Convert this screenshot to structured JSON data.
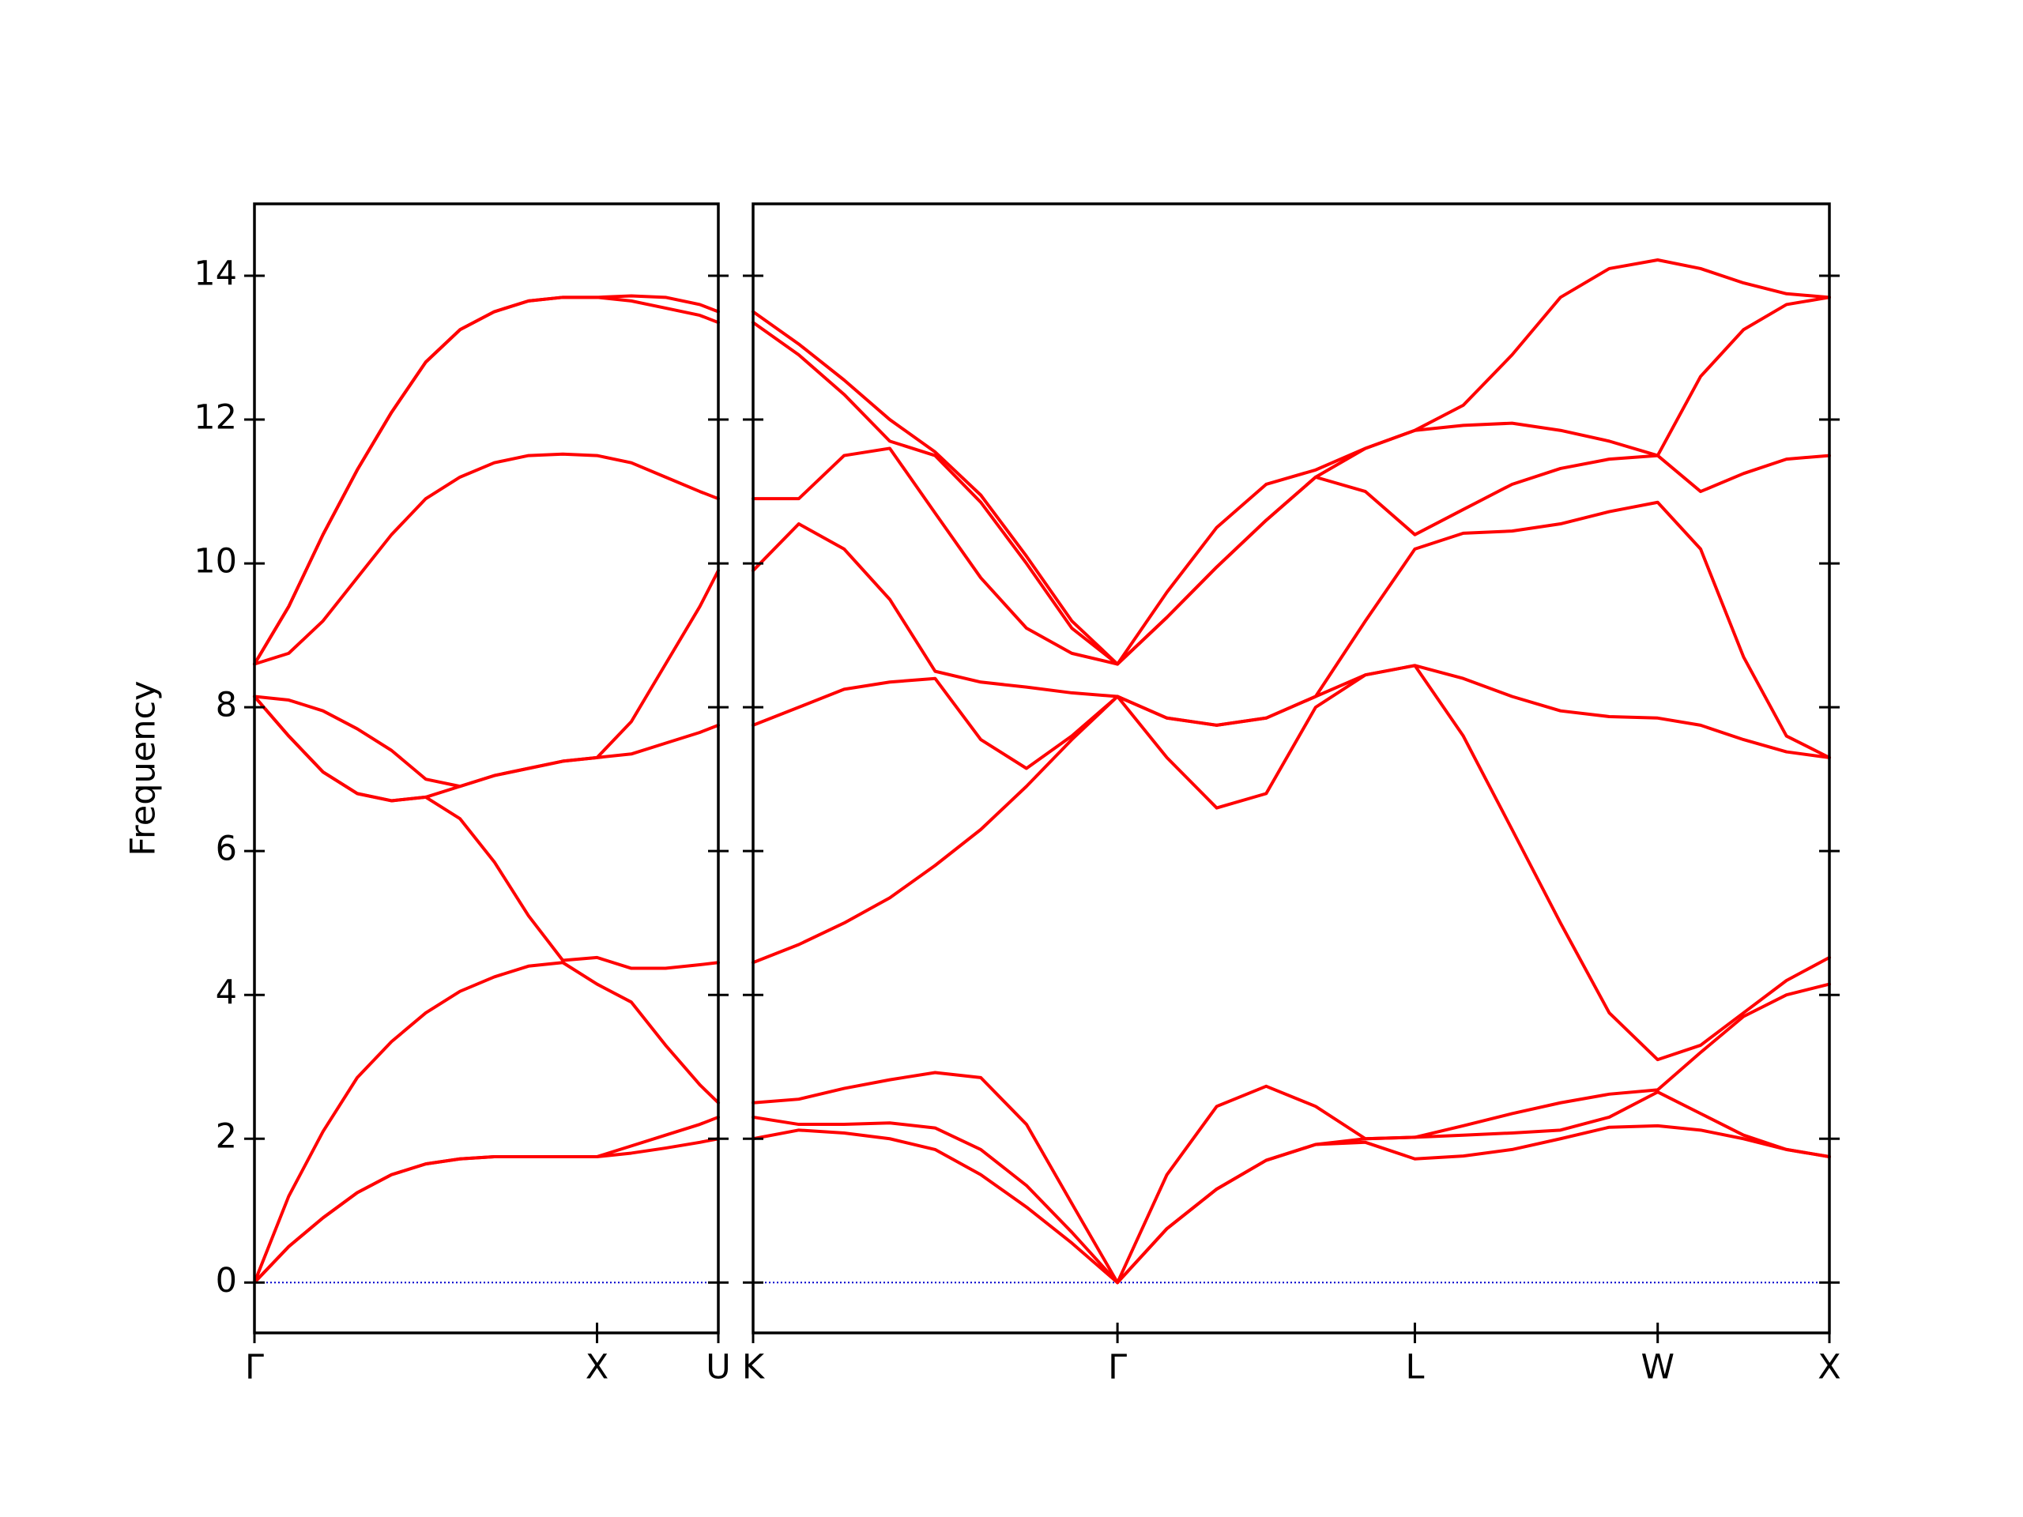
{
  "chart_data": [
    {
      "type": "line",
      "ylabel": "Frequency",
      "color": "#ff0000",
      "ytick_labels": true,
      "hline": {
        "y": 0,
        "color": "#0000cc"
      },
      "xlim": [
        0,
        1.354
      ],
      "ylim": [
        -0.7,
        15
      ],
      "xticks": [
        {
          "value": 0,
          "label": "Γ"
        },
        {
          "value": 1,
          "label": "X"
        },
        {
          "value": 1.354,
          "label": "U"
        }
      ],
      "yticks": [
        0,
        2,
        4,
        6,
        8,
        10,
        12,
        14
      ],
      "x": [
        0,
        0.1,
        0.2,
        0.3,
        0.4,
        0.5,
        0.6,
        0.7,
        0.8,
        0.9,
        1.0,
        1.1,
        1.2,
        1.3,
        1.354
      ],
      "series": [
        {
          "values": [
            0,
            0.5,
            0.9,
            1.25,
            1.5,
            1.65,
            1.72,
            1.75,
            1.75,
            1.75,
            1.75,
            1.8,
            1.87,
            1.95,
            2.0
          ]
        },
        {
          "values": [
            0,
            0.5,
            0.9,
            1.25,
            1.5,
            1.65,
            1.72,
            1.75,
            1.75,
            1.75,
            1.75,
            1.9,
            2.05,
            2.2,
            2.3
          ]
        },
        {
          "values": [
            0,
            1.2,
            2.1,
            2.85,
            3.35,
            3.75,
            4.05,
            4.25,
            4.4,
            4.45,
            4.15,
            3.9,
            3.3,
            2.75,
            2.5
          ]
        },
        {
          "values": [
            8.15,
            7.6,
            7.1,
            6.8,
            6.7,
            6.75,
            6.45,
            5.85,
            5.1,
            4.48,
            4.52,
            4.37,
            4.37,
            4.42,
            4.45
          ]
        },
        {
          "values": [
            8.15,
            7.6,
            7.1,
            6.8,
            6.7,
            6.75,
            6.9,
            7.05,
            7.15,
            7.25,
            7.3,
            7.35,
            7.5,
            7.65,
            7.75
          ]
        },
        {
          "values": [
            8.15,
            8.1,
            7.95,
            7.7,
            7.4,
            7.0,
            6.9,
            7.05,
            7.15,
            7.25,
            7.3,
            7.8,
            8.6,
            9.4,
            9.9
          ]
        },
        {
          "values": [
            8.6,
            8.75,
            9.2,
            9.8,
            10.4,
            10.9,
            11.2,
            11.4,
            11.5,
            11.52,
            11.5,
            11.4,
            11.2,
            11.0,
            10.9
          ]
        },
        {
          "values": [
            8.6,
            9.4,
            10.4,
            11.3,
            12.1,
            12.8,
            13.25,
            13.5,
            13.65,
            13.7,
            13.7,
            13.65,
            13.55,
            13.45,
            13.35
          ]
        },
        {
          "values": [
            8.6,
            9.4,
            10.4,
            11.3,
            12.1,
            12.8,
            13.25,
            13.5,
            13.65,
            13.7,
            13.7,
            13.72,
            13.7,
            13.6,
            13.5
          ]
        }
      ]
    },
    {
      "type": "line",
      "color": "#ff0000",
      "ytick_labels": false,
      "hline": {
        "y": 0,
        "color": "#0000cc"
      },
      "xlim": [
        1.354,
        4.488
      ],
      "ylim": [
        -0.7,
        15
      ],
      "xticks": [
        {
          "value": 1.354,
          "label": "K"
        },
        {
          "value": 2.415,
          "label": "Γ"
        },
        {
          "value": 3.281,
          "label": "L"
        },
        {
          "value": 3.988,
          "label": "W"
        },
        {
          "value": 4.488,
          "label": "X"
        }
      ],
      "yticks": [
        0,
        2,
        4,
        6,
        8,
        10,
        12,
        14
      ],
      "x": [
        1.354,
        1.487,
        1.619,
        1.752,
        1.884,
        2.017,
        2.15,
        2.282,
        2.415,
        2.559,
        2.704,
        2.848,
        2.992,
        3.137,
        3.281,
        3.422,
        3.564,
        3.705,
        3.847,
        3.988,
        4.113,
        4.238,
        4.363,
        4.488
      ],
      "series": [
        {
          "values": [
            2.0,
            2.12,
            2.08,
            2.0,
            1.85,
            1.5,
            1.05,
            0.55,
            0,
            0.75,
            1.3,
            1.7,
            1.92,
            1.95,
            1.72,
            1.76,
            1.85,
            2.0,
            2.16,
            2.18,
            2.12,
            2.0,
            1.85,
            1.75
          ]
        },
        {
          "values": [
            2.3,
            2.2,
            2.2,
            2.22,
            2.15,
            1.85,
            1.35,
            0.7,
            0,
            0.75,
            1.3,
            1.7,
            1.92,
            2.0,
            2.02,
            2.05,
            2.08,
            2.12,
            2.3,
            2.65,
            2.35,
            2.05,
            1.85,
            1.75
          ]
        },
        {
          "values": [
            2.5,
            2.55,
            2.7,
            2.82,
            2.92,
            2.85,
            2.2,
            1.1,
            0,
            1.5,
            2.45,
            2.73,
            2.45,
            2.0,
            2.02,
            2.18,
            2.35,
            2.5,
            2.62,
            2.68,
            3.2,
            3.7,
            4.0,
            4.15
          ]
        },
        {
          "values": [
            4.45,
            4.7,
            5.0,
            5.35,
            5.8,
            6.3,
            6.9,
            7.55,
            8.15,
            7.3,
            6.6,
            6.8,
            8.0,
            8.45,
            8.58,
            7.6,
            6.3,
            5.0,
            3.75,
            3.1,
            3.3,
            3.75,
            4.2,
            4.52
          ]
        },
        {
          "values": [
            7.75,
            8.0,
            8.25,
            8.35,
            8.4,
            7.55,
            7.15,
            7.6,
            8.15,
            7.85,
            7.75,
            7.85,
            8.15,
            8.45,
            8.58,
            8.4,
            8.15,
            7.95,
            7.87,
            7.85,
            7.75,
            7.55,
            7.38,
            7.3
          ]
        },
        {
          "values": [
            9.9,
            10.55,
            10.2,
            9.5,
            8.5,
            8.35,
            8.28,
            8.2,
            8.15,
            7.85,
            7.75,
            7.85,
            8.15,
            9.2,
            10.2,
            10.42,
            10.45,
            10.55,
            10.72,
            10.85,
            10.2,
            8.7,
            7.6,
            7.3
          ]
        },
        {
          "values": [
            10.9,
            10.9,
            11.5,
            11.6,
            10.7,
            9.8,
            9.1,
            8.75,
            8.6,
            9.25,
            9.95,
            10.6,
            11.2,
            11.0,
            10.4,
            10.75,
            11.1,
            11.32,
            11.45,
            11.5,
            11.0,
            11.25,
            11.45,
            11.5
          ]
        },
        {
          "values": [
            13.35,
            12.9,
            12.35,
            11.7,
            11.5,
            10.85,
            10.0,
            9.1,
            8.6,
            9.25,
            9.95,
            10.6,
            11.2,
            11.6,
            11.85,
            11.92,
            11.95,
            11.85,
            11.7,
            11.5,
            12.6,
            13.25,
            13.6,
            13.7
          ]
        },
        {
          "values": [
            13.5,
            13.05,
            12.55,
            12.0,
            11.55,
            10.95,
            10.1,
            9.2,
            8.6,
            9.6,
            10.5,
            11.1,
            11.3,
            11.6,
            11.85,
            12.2,
            12.9,
            13.7,
            14.1,
            14.22,
            14.1,
            13.9,
            13.75,
            13.7
          ]
        }
      ]
    }
  ]
}
